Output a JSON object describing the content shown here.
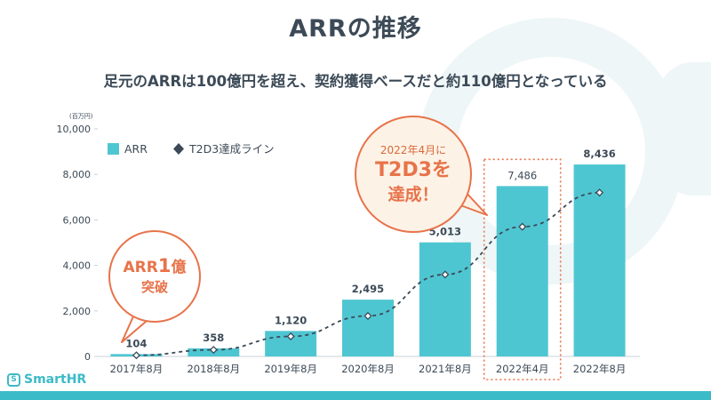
{
  "page": {
    "title": "ARRの推移",
    "subtitle": "足元のARRは100億円を超え、契約獲得ベースだと約110億円となっている"
  },
  "logo": {
    "icon": "S",
    "text": "SmartHR"
  },
  "callouts": {
    "arr": {
      "line1_prefix": "ARR",
      "line1_big": "1",
      "line1_suffix": "億",
      "line2": "突破"
    },
    "t2d3": {
      "line1": "2022年4月に",
      "line2": "T2D3を",
      "line3": "達成！"
    }
  },
  "colors": {
    "bar": "#4ec6d2",
    "accent": "#e8734a",
    "text": "#3c4a57",
    "line": "#3c4a57",
    "brand": "#3bbbc7"
  },
  "chart_data": {
    "type": "bar",
    "unit": "(百万円)",
    "categories": [
      "2017年8月",
      "2018年8月",
      "2019年8月",
      "2020年8月",
      "2021年8月",
      "2022年4月",
      "2022年8月"
    ],
    "ylim": [
      0,
      10000
    ],
    "yticks": [
      0,
      2000,
      4000,
      6000,
      8000,
      10000
    ],
    "ytick_labels": [
      "0",
      "2,000",
      "4,000",
      "6,000",
      "8,000",
      "10,000"
    ],
    "highlight_category": "2022年4月",
    "series": [
      {
        "name": "ARR",
        "type": "bar",
        "values": [
          104,
          358,
          1120,
          2495,
          5013,
          7486,
          8436
        ],
        "labels": [
          "104",
          "358",
          "1,120",
          "2,495",
          "5,013",
          "7,486",
          "8,436"
        ]
      },
      {
        "name": "T2D3達成ライン",
        "type": "line",
        "style": "dashed",
        "marker": "diamond",
        "values": [
          50,
          290,
          880,
          1780,
          3600,
          5700,
          7200
        ]
      }
    ],
    "legend_position": "top-left"
  }
}
